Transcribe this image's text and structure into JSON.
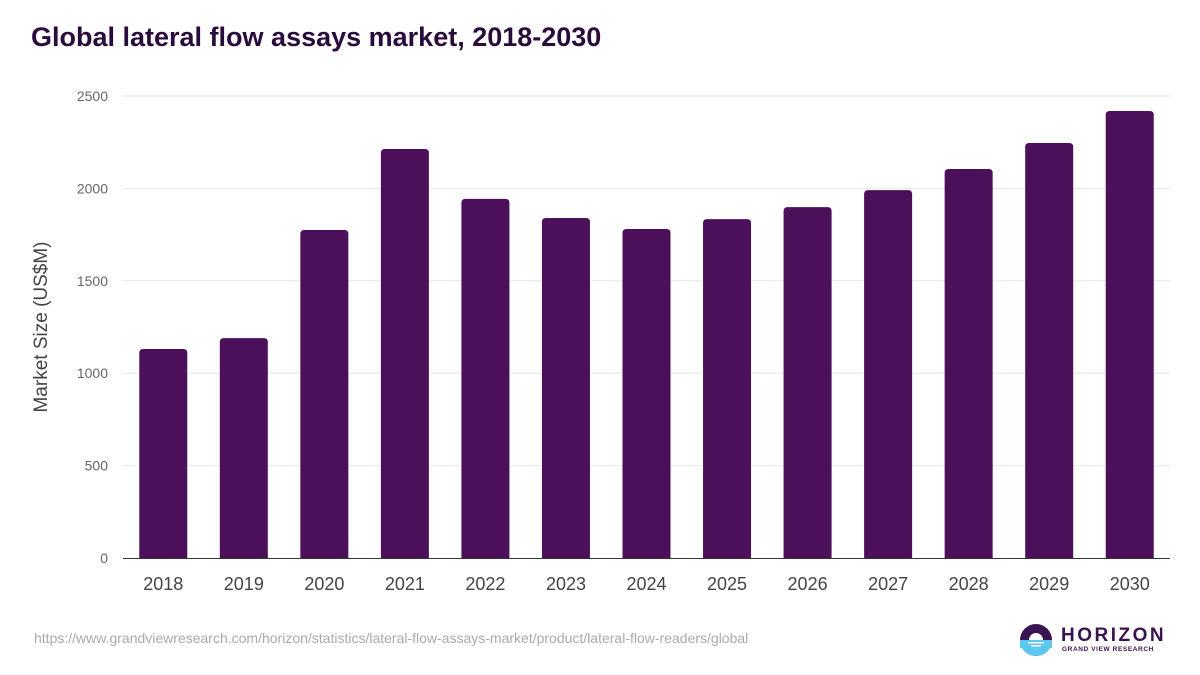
{
  "chart_data": {
    "type": "bar",
    "title": "Global lateral flow assays market, 2018-2030",
    "xlabel": "",
    "ylabel": "Market Size (US$M)",
    "ylim": [
      0,
      2500
    ],
    "yticks": [
      0,
      500,
      1000,
      1500,
      2000,
      2500
    ],
    "grid": true,
    "categories": [
      "2018",
      "2019",
      "2020",
      "2021",
      "2022",
      "2023",
      "2024",
      "2025",
      "2026",
      "2027",
      "2028",
      "2029",
      "2030"
    ],
    "values": [
      1131,
      1190,
      1775,
      2213,
      1943,
      1840,
      1780,
      1834,
      1899,
      1991,
      2105,
      2246,
      2419
    ],
    "bar_color": "#4b1059"
  },
  "footer": {
    "source_url": "https://www.grandviewresearch.com/horizon/statistics/lateral-flow-assays-market/product/lateral-flow-readers/global",
    "logo_main": "HORIZON",
    "logo_sub": "GRAND VIEW RESEARCH"
  }
}
